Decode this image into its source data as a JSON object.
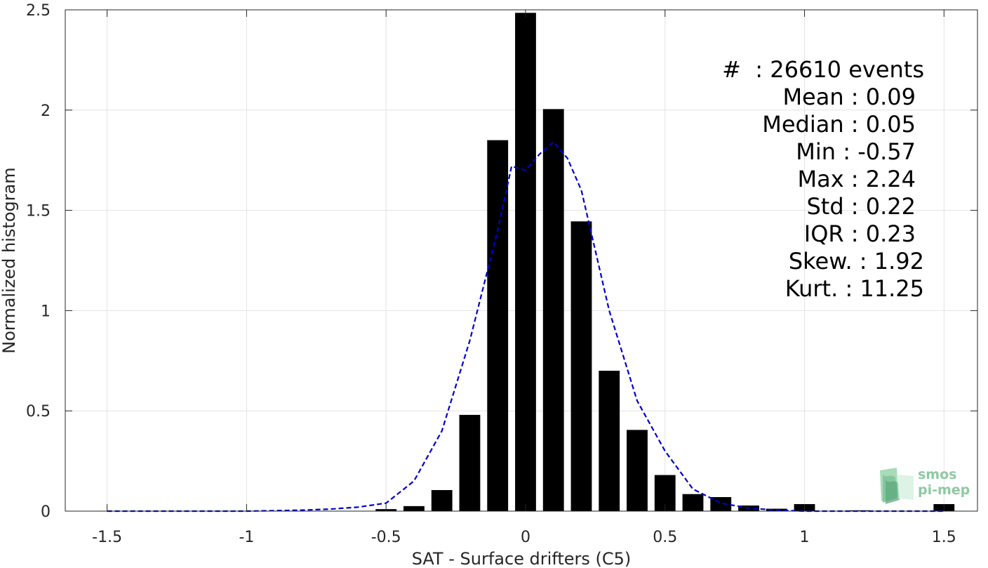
{
  "chart_data": {
    "type": "bar",
    "xlabel": "SAT - Surface drifters (C5)",
    "ylabel": "Normalized histogram",
    "xlim": [
      -1.65,
      1.62
    ],
    "ylim": [
      0,
      2.5
    ],
    "xticks": [
      -1.5,
      -1,
      -0.5,
      0,
      0.5,
      1,
      1.5
    ],
    "xtick_labels": [
      "-1.5",
      "-1",
      "-0.5",
      "0",
      "0.5",
      "1",
      "1.5"
    ],
    "yticks": [
      0,
      0.5,
      1,
      1.5,
      2,
      2.5
    ],
    "ytick_labels": [
      "0",
      "0.5",
      "1",
      "1.5",
      "2",
      "2.5"
    ],
    "grid": true,
    "bar_width": 0.075,
    "bars": {
      "x": [
        -0.5,
        -0.4,
        -0.3,
        -0.2,
        -0.1,
        0.0,
        0.1,
        0.2,
        0.3,
        0.4,
        0.5,
        0.6,
        0.7,
        0.8,
        0.9,
        1.0,
        1.2,
        1.5
      ],
      "values": [
        0.01,
        0.025,
        0.105,
        0.48,
        1.85,
        2.485,
        2.005,
        1.445,
        0.7,
        0.405,
        0.18,
        0.085,
        0.07,
        0.028,
        0.012,
        0.035,
        0.004,
        0.035
      ],
      "color": "#000000"
    },
    "fit_curve": {
      "style": "dashed",
      "color": "#0000cc",
      "x": [
        -1.5,
        -1.0,
        -0.8,
        -0.7,
        -0.6,
        -0.5,
        -0.4,
        -0.3,
        -0.2,
        -0.1,
        -0.05,
        0.0,
        0.05,
        0.1,
        0.15,
        0.2,
        0.3,
        0.4,
        0.5,
        0.6,
        0.7,
        0.8,
        0.9,
        1.0,
        1.2,
        1.5
      ],
      "y": [
        0.0,
        0.0,
        0.005,
        0.01,
        0.02,
        0.04,
        0.15,
        0.4,
        0.85,
        1.4,
        1.72,
        1.7,
        1.78,
        1.84,
        1.76,
        1.6,
        1.0,
        0.55,
        0.3,
        0.11,
        0.04,
        0.015,
        0.005,
        0.0,
        0.0,
        0.0
      ]
    },
    "stats": [
      {
        "label": "#  : 26610 events",
        "indent": 0
      },
      {
        "label": "Mean : 0.09",
        "indent": 1
      },
      {
        "label": "Median : 0.05",
        "indent": 1
      },
      {
        "label": "Min : -0.57",
        "indent": 1
      },
      {
        "label": "Max : 2.24",
        "indent": 1
      },
      {
        "label": "Std : 0.22",
        "indent": 1
      },
      {
        "label": "IQR : 0.23",
        "indent": 1
      },
      {
        "label": "Skew. : 1.92",
        "indent": 0
      },
      {
        "label": "Kurt. : 11.25",
        "indent": 0
      }
    ]
  },
  "logo": {
    "line1": "smos",
    "line2": "pi-mep",
    "color": "#8fc9a3"
  }
}
